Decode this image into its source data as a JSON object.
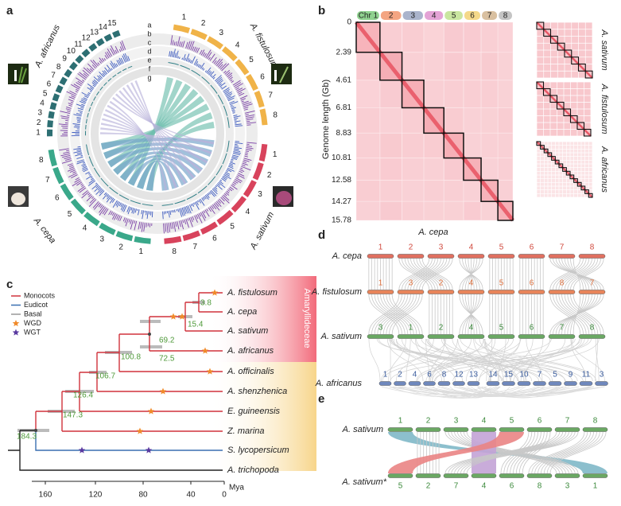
{
  "panel_labels": [
    "a",
    "b",
    "c",
    "d",
    "e"
  ],
  "panel_a": {
    "genomes": [
      {
        "name": "A. africanus",
        "chromosomes": [
          1,
          2,
          3,
          4,
          5,
          6,
          7,
          8,
          9,
          10,
          11,
          12,
          13,
          14,
          15
        ]
      },
      {
        "name": "A. fistulosum",
        "chromosomes": [
          1,
          2,
          3,
          4,
          5,
          6,
          7,
          8
        ]
      },
      {
        "name": "A. cepa",
        "chromosomes": [
          1,
          2,
          3,
          4,
          5,
          6,
          7,
          8
        ]
      },
      {
        "name": "A. sativum",
        "chromosomes": [
          1,
          2,
          3,
          4,
          5,
          6,
          7,
          8
        ]
      }
    ],
    "tracks": [
      "a",
      "b",
      "c",
      "d",
      "e",
      "f",
      "g"
    ]
  },
  "panel_b": {
    "chromosomes": [
      "Chr 1",
      "2",
      "3",
      "4",
      "5",
      "6",
      "7",
      "8"
    ],
    "y_label": "Genome length (Gb)",
    "yticks": [
      0,
      2.39,
      4.61,
      6.81,
      8.83,
      10.81,
      12.58,
      14.27,
      15.78
    ],
    "x_label": "A. cepa",
    "side_labels": [
      "A. sativum",
      "A. fistulosum",
      "A. africanus"
    ]
  },
  "panel_c": {
    "legend": [
      "Monocots",
      "Eudicot",
      "Basal",
      "WGD",
      "WGT"
    ],
    "clade": "Amaryllideceae",
    "species": [
      "A. fistulosum",
      "A. cepa",
      "A. sativum",
      "A. africanus",
      "A. officinalis",
      "A. shenzhenica",
      "E. guineensis",
      "Z. marina",
      "S. lycopersicum",
      "A. trichopoda"
    ],
    "node_ages": [
      3.8,
      15.4,
      69.2,
      72.5,
      100.8,
      106.7,
      126.4,
      147.3,
      184.3
    ],
    "axis_ticks": [
      160,
      120,
      80,
      40,
      0
    ],
    "axis_unit": "Mya"
  },
  "panel_d": {
    "rows": [
      {
        "name": "A. cepa",
        "chromosomes": [
          1,
          2,
          3,
          4,
          5,
          6,
          7,
          8
        ]
      },
      {
        "name": "A. fistulosum",
        "chromosomes": [
          1,
          3,
          2,
          4,
          5,
          6,
          8,
          7
        ]
      },
      {
        "name": "A. sativum",
        "chromosomes": [
          3,
          1,
          2,
          4,
          5,
          6,
          7,
          8
        ]
      },
      {
        "name": "A. africanus",
        "chromosomes": [
          1,
          2,
          4,
          6,
          8,
          12,
          13,
          14,
          15,
          10,
          7,
          5,
          9,
          11,
          3
        ]
      }
    ]
  },
  "panel_e": {
    "rows": [
      {
        "name": "A. sativum",
        "chromosomes": [
          1,
          2,
          3,
          4,
          5,
          6,
          7,
          8
        ]
      },
      {
        "name": "A. sativum*",
        "chromosomes": [
          5,
          2,
          7,
          4,
          6,
          8,
          3,
          1
        ]
      }
    ]
  }
}
